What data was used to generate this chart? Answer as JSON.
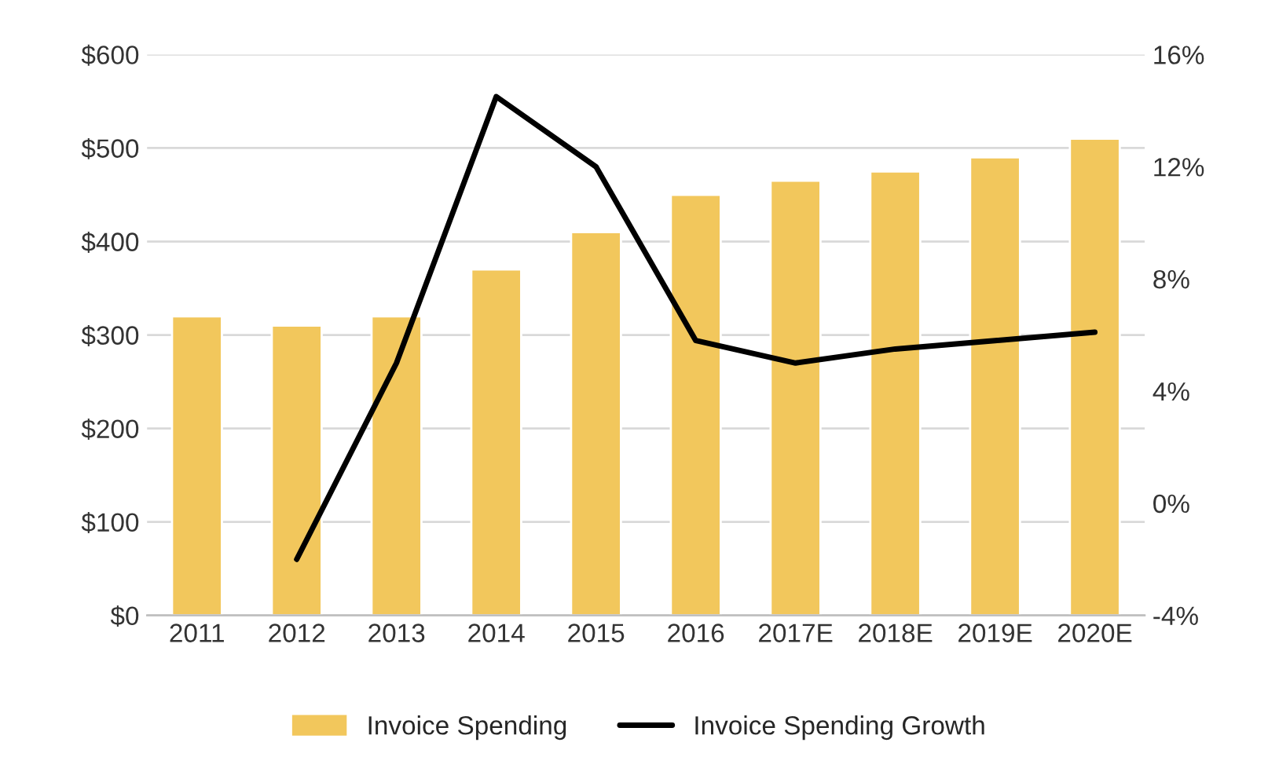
{
  "chart_data": {
    "type": "bar",
    "categories": [
      "2011",
      "2012",
      "2013",
      "2014",
      "2015",
      "2016",
      "2017E",
      "2018E",
      "2019E",
      "2020E"
    ],
    "series": [
      {
        "name": "Invoice Spending",
        "color": "#f2c75c",
        "values": [
          320,
          310,
          320,
          370,
          410,
          450,
          465,
          475,
          490,
          510
        ]
      },
      {
        "name": "Invoice Spending Growth",
        "type": "line",
        "axis": "y2",
        "color": "#000000",
        "values": [
          null,
          -2,
          5,
          14.5,
          12,
          5.8,
          5,
          5.5,
          5.8,
          6.1
        ]
      }
    ],
    "ylim": [
      0,
      600
    ],
    "yticks": [
      {
        "value": 0,
        "label": "$0"
      },
      {
        "value": 100,
        "label": "$100"
      },
      {
        "value": 200,
        "label": "$200"
      },
      {
        "value": 300,
        "label": "$300"
      },
      {
        "value": 400,
        "label": "$400"
      },
      {
        "value": 500,
        "label": "$500"
      },
      {
        "value": 600,
        "label": "$600"
      }
    ],
    "y2lim": [
      -4,
      16
    ],
    "y2ticks": [
      {
        "value": -4,
        "label": "-4%"
      },
      {
        "value": 0,
        "label": "0%"
      },
      {
        "value": 4,
        "label": "4%"
      },
      {
        "value": 8,
        "label": "8%"
      },
      {
        "value": 12,
        "label": "12%"
      },
      {
        "value": 16,
        "label": "16%"
      }
    ],
    "grid": "y",
    "legend": "bottom",
    "marker": "none",
    "line_style": "solid"
  }
}
